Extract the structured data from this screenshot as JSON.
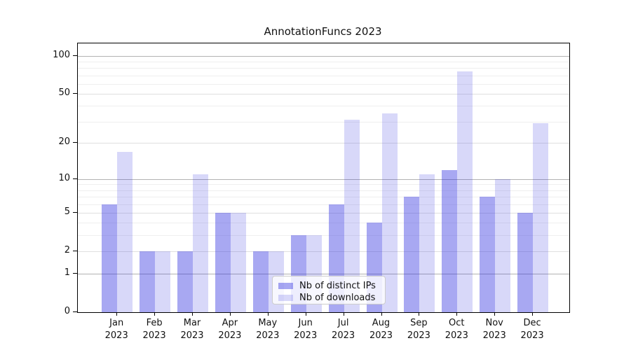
{
  "title": "AnnotationFuncs 2023",
  "chart_data": {
    "type": "bar",
    "title": "AnnotationFuncs 2023",
    "categories": [
      "Jan",
      "Feb",
      "Mar",
      "Apr",
      "May",
      "Jun",
      "Jul",
      "Aug",
      "Sep",
      "Oct",
      "Nov",
      "Dec"
    ],
    "category_year": "2023",
    "series": [
      {
        "name": "Nb of distinct IPs",
        "color": "#a8a8f0",
        "rgba": "rgba(47,47,224,0.42)",
        "values": [
          6,
          2,
          2,
          5,
          2,
          3,
          6,
          4,
          7,
          12,
          7,
          5
        ]
      },
      {
        "name": "Nb of downloads",
        "color": "#d9d9f7",
        "rgba": "rgba(47,47,224,0.19)",
        "values": [
          17,
          2,
          11,
          5,
          2,
          3,
          31,
          35,
          11,
          75,
          10,
          29
        ]
      }
    ],
    "xlabel": "",
    "ylabel": "",
    "yscale": "log1p",
    "yticks": [
      0,
      1,
      2,
      5,
      10,
      20,
      50,
      100
    ],
    "minor_gridlines": [
      3,
      4,
      6,
      7,
      8,
      9,
      30,
      40,
      60,
      70,
      80,
      90
    ],
    "decade_gridlines": [
      1,
      10,
      100
    ],
    "ylim": [
      0,
      126
    ],
    "grid": true,
    "legend_position": "lower center"
  },
  "legend": {
    "items": [
      {
        "label": "Nb of distinct IPs"
      },
      {
        "label": "Nb of downloads"
      }
    ]
  },
  "colors": {
    "bar_dark": "#a8a8f0",
    "bar_light": "#d9d9f7",
    "grid_decade": "#b2b2b2",
    "grid_minor": "#efefef",
    "axis": "#000000",
    "legend_border": "#cccccc"
  }
}
